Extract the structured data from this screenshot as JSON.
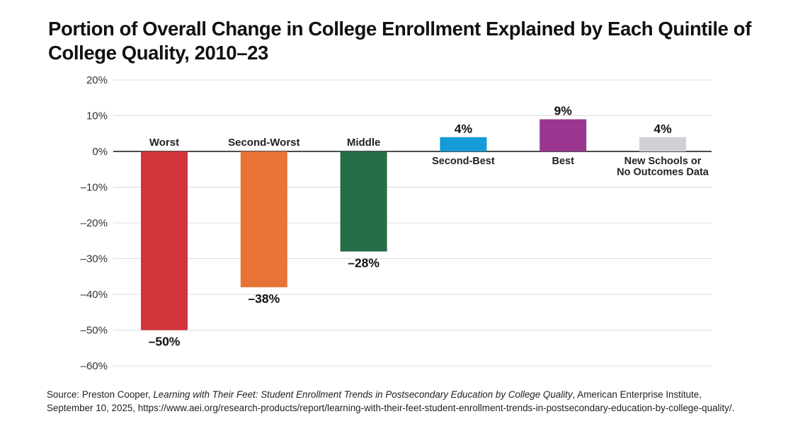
{
  "title": "Portion of Overall Change in College Enrollment Explained by Each Quintile of College Quality, 2010–23",
  "chart_data": {
    "type": "bar",
    "title": "Portion of Overall Change in College Enrollment Explained by Each Quintile of College Quality, 2010–23",
    "xlabel": "",
    "ylabel": "",
    "ylim": [
      -60,
      20
    ],
    "yticks": [
      20,
      10,
      0,
      -10,
      -20,
      -30,
      -40,
      -50,
      -60
    ],
    "ytick_labels": [
      "20%",
      "10%",
      "0%",
      "–10%",
      "–20%",
      "–30%",
      "–40%",
      "–50%",
      "–60%"
    ],
    "grid": true,
    "categories": [
      [
        "Worst"
      ],
      [
        "Second-Worst"
      ],
      [
        "Middle"
      ],
      [
        "Second-Best"
      ],
      [
        "Best"
      ],
      [
        "New Schools or",
        "No Outcomes Data"
      ]
    ],
    "values": [
      -50,
      -38,
      -28,
      4,
      9,
      4
    ],
    "value_labels": [
      "–50%",
      "–38%",
      "–28%",
      "4%",
      "9%",
      "4%"
    ],
    "colors": [
      "#d1343b",
      "#e87336",
      "#276d45",
      "#159bd6",
      "#9a368f",
      "#cfd0d3"
    ]
  },
  "source": {
    "prefix": "Source: Preston Cooper, ",
    "italic": "Learning with Their Feet: Student Enrollment Trends in Postsecondary Education by College Quality",
    "suffix": ", American Enterprise Institute, September 10, 2025, https://www.aei.org/research-products/report/learning-with-their-feet-student-enrollment-trends-in-postsecondary-education-by-college-quality/."
  }
}
